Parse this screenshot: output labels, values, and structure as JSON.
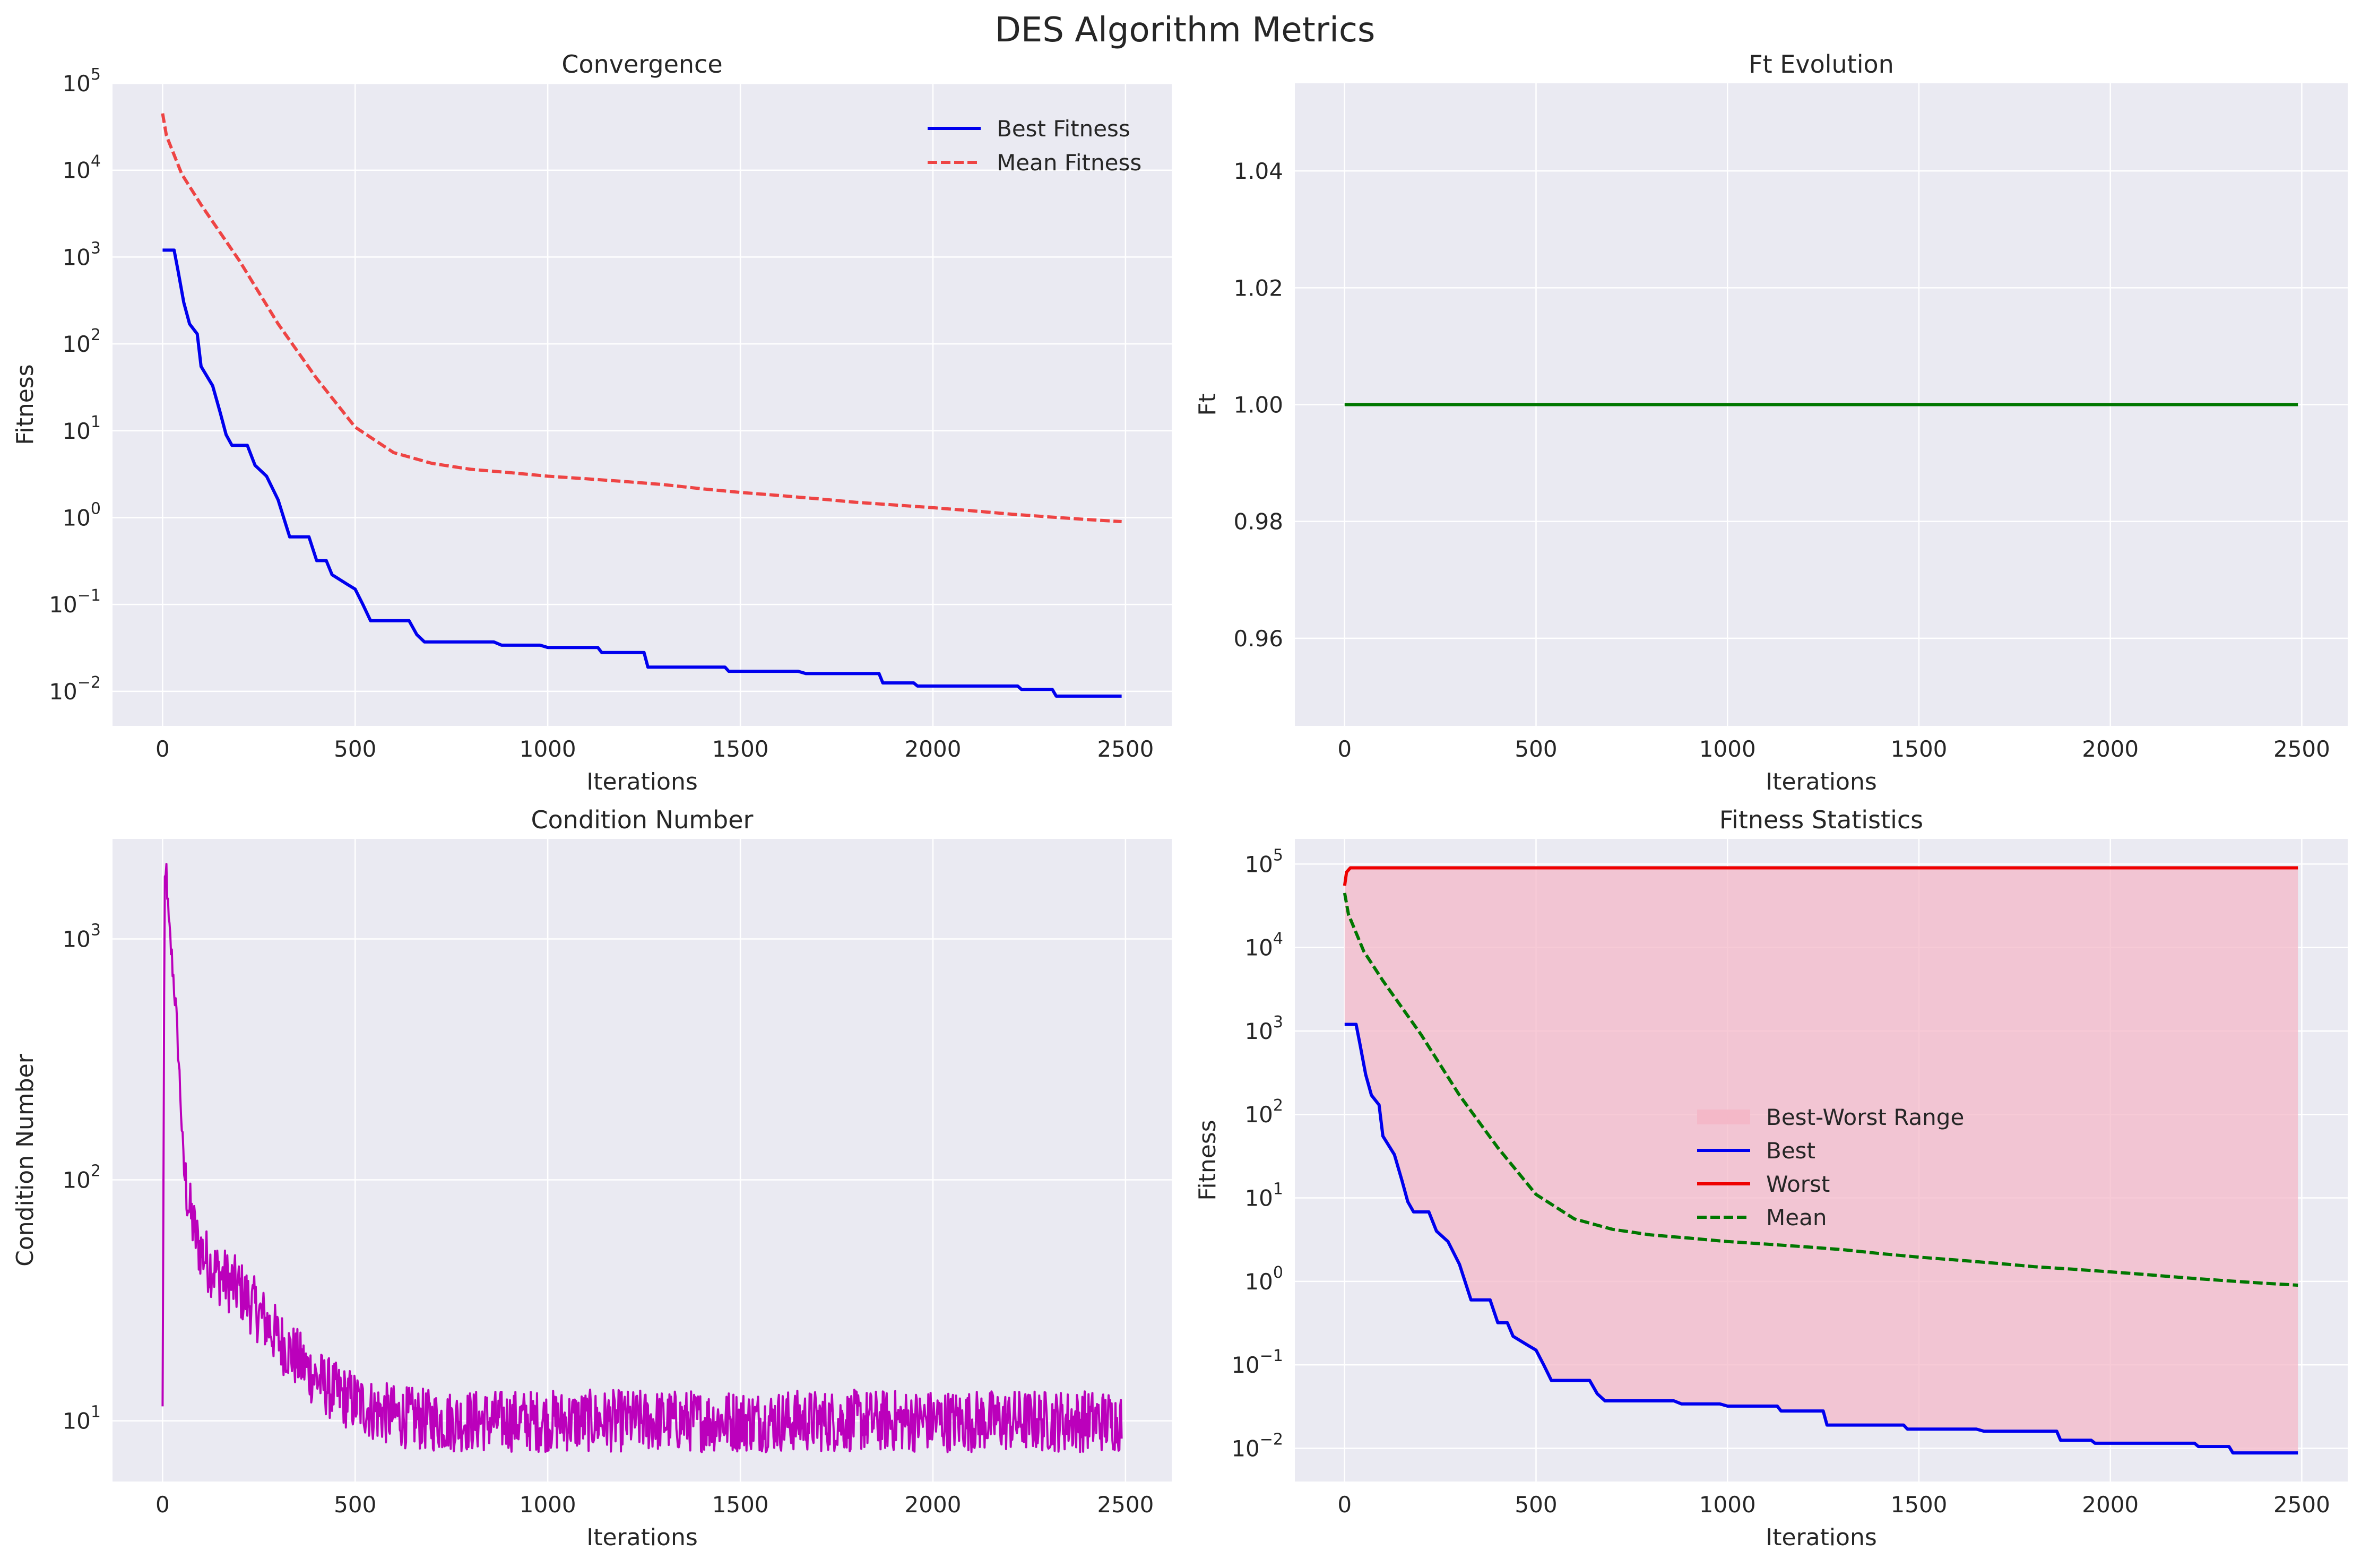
{
  "figure": {
    "title": "DES Algorithm Metrics"
  },
  "colors": {
    "panel_background": "#eaeaf2",
    "grid": "#ffffff",
    "blue": "#0000ee",
    "red": "#ee0000",
    "mean_red": "#ee4444",
    "green": "#007700",
    "magenta": "#bb00bb",
    "range_fill": "#f4b8c8"
  },
  "chart_data": [
    {
      "id": "convergence",
      "type": "line",
      "title": "Convergence",
      "xlabel": "Iterations",
      "ylabel": "Fitness",
      "yscale": "log",
      "xlim": [
        -130,
        2620
      ],
      "ylim": [
        0.004,
        100000
      ],
      "xticks": [
        0,
        500,
        1000,
        1500,
        2000,
        2500
      ],
      "yticks": [
        0.01,
        0.1,
        1,
        10,
        100,
        1000,
        10000,
        100000
      ],
      "ytick_exponents": [
        "−2",
        "−1",
        "0",
        "1",
        "2",
        "3",
        "4",
        "5"
      ],
      "grid": true,
      "legend": "top-right",
      "series": [
        {
          "name": "Best Fitness",
          "style": "solid",
          "color": "#0000ee",
          "points": [
            [
              0,
              1200
            ],
            [
              30,
              1200
            ],
            [
              40,
              700
            ],
            [
              55,
              300
            ],
            [
              70,
              170
            ],
            [
              90,
              130
            ],
            [
              100,
              55
            ],
            [
              130,
              33
            ],
            [
              150,
              16
            ],
            [
              165,
              9
            ],
            [
              180,
              6.8
            ],
            [
              220,
              6.8
            ],
            [
              240,
              4
            ],
            [
              270,
              3
            ],
            [
              300,
              1.6
            ],
            [
              330,
              0.6
            ],
            [
              380,
              0.6
            ],
            [
              400,
              0.32
            ],
            [
              425,
              0.32
            ],
            [
              440,
              0.22
            ],
            [
              480,
              0.17
            ],
            [
              500,
              0.15
            ],
            [
              520,
              0.1
            ],
            [
              540,
              0.065
            ],
            [
              640,
              0.065
            ],
            [
              660,
              0.045
            ],
            [
              680,
              0.037
            ],
            [
              860,
              0.037
            ],
            [
              880,
              0.034
            ],
            [
              980,
              0.034
            ],
            [
              1000,
              0.032
            ],
            [
              1130,
              0.032
            ],
            [
              1140,
              0.028
            ],
            [
              1250,
              0.028
            ],
            [
              1260,
              0.019
            ],
            [
              1460,
              0.019
            ],
            [
              1470,
              0.017
            ],
            [
              1650,
              0.017
            ],
            [
              1670,
              0.016
            ],
            [
              1860,
              0.016
            ],
            [
              1870,
              0.0125
            ],
            [
              1950,
              0.0125
            ],
            [
              1960,
              0.0115
            ],
            [
              2220,
              0.0115
            ],
            [
              2230,
              0.0105
            ],
            [
              2310,
              0.0105
            ],
            [
              2320,
              0.0088
            ],
            [
              2490,
              0.0088
            ]
          ]
        },
        {
          "name": "Mean Fitness",
          "style": "dashed",
          "color": "#ee4444",
          "points": [
            [
              0,
              45000
            ],
            [
              10,
              25000
            ],
            [
              50,
              9000
            ],
            [
              100,
              4000
            ],
            [
              200,
              900
            ],
            [
              300,
              170
            ],
            [
              400,
              40
            ],
            [
              500,
              11
            ],
            [
              600,
              5.6
            ],
            [
              700,
              4.2
            ],
            [
              800,
              3.6
            ],
            [
              900,
              3.3
            ],
            [
              1000,
              3
            ],
            [
              1100,
              2.8
            ],
            [
              1200,
              2.6
            ],
            [
              1300,
              2.4
            ],
            [
              1400,
              2.15
            ],
            [
              1500,
              1.95
            ],
            [
              1600,
              1.8
            ],
            [
              1700,
              1.65
            ],
            [
              1800,
              1.5
            ],
            [
              1900,
              1.4
            ],
            [
              2000,
              1.3
            ],
            [
              2100,
              1.2
            ],
            [
              2200,
              1.1
            ],
            [
              2300,
              1.02
            ],
            [
              2400,
              0.95
            ],
            [
              2490,
              0.9
            ]
          ]
        }
      ]
    },
    {
      "id": "ft-evolution",
      "type": "line",
      "title": "Ft Evolution",
      "xlabel": "Iterations",
      "ylabel": "Ft",
      "yscale": "linear",
      "xlim": [
        -130,
        2620
      ],
      "ylim": [
        0.945,
        1.055
      ],
      "xticks": [
        0,
        500,
        1000,
        1500,
        2000,
        2500
      ],
      "yticks": [
        0.96,
        0.98,
        1.0,
        1.02,
        1.04
      ],
      "ytick_labels": [
        "0.96",
        "0.98",
        "1.00",
        "1.02",
        "1.04"
      ],
      "grid": true,
      "series": [
        {
          "style": "solid",
          "color": "#007700",
          "points": [
            [
              0,
              1.0
            ],
            [
              2490,
              1.0
            ]
          ]
        }
      ]
    },
    {
      "id": "condition-number",
      "type": "line",
      "title": "Condition Number",
      "xlabel": "Iterations",
      "ylabel": "Condition Number",
      "yscale": "log",
      "xlim": [
        -130,
        2620
      ],
      "ylim": [
        5.6,
        2600
      ],
      "xticks": [
        0,
        500,
        1000,
        1500,
        2000,
        2500
      ],
      "yticks": [
        10,
        100,
        1000
      ],
      "ytick_exponents": [
        "1",
        "2",
        "3"
      ],
      "grid": true,
      "series": [
        {
          "style": "noisy",
          "color": "#bb00bb",
          "points": [
            [
              0,
              11
            ],
            [
              5,
              1500
            ],
            [
              10,
              1950
            ],
            [
              15,
              1200
            ],
            [
              25,
              800
            ],
            [
              35,
              500
            ],
            [
              45,
              250
            ],
            [
              55,
              110
            ],
            [
              70,
              75
            ],
            [
              90,
              55
            ],
            [
              120,
              45
            ],
            [
              150,
              40
            ],
            [
              200,
              35
            ],
            [
              250,
              28
            ],
            [
              300,
              22
            ],
            [
              350,
              18
            ],
            [
              400,
              15
            ],
            [
              450,
              13
            ],
            [
              500,
              12
            ],
            [
              550,
              11
            ],
            [
              600,
              10.5
            ],
            [
              700,
              10
            ],
            [
              1000,
              10
            ],
            [
              1500,
              10
            ],
            [
              2000,
              10
            ],
            [
              2490,
              10
            ]
          ]
        }
      ]
    },
    {
      "id": "fitness-statistics",
      "type": "line",
      "title": "Fitness Statistics",
      "xlabel": "Iterations",
      "ylabel": "Fitness",
      "yscale": "log",
      "xlim": [
        -130,
        2620
      ],
      "ylim": [
        0.004,
        200000
      ],
      "xticks": [
        0,
        500,
        1000,
        1500,
        2000,
        2500
      ],
      "yticks": [
        0.01,
        0.1,
        1,
        10,
        100,
        1000,
        10000,
        100000
      ],
      "ytick_exponents": [
        "−2",
        "−1",
        "0",
        "1",
        "2",
        "3",
        "4",
        "5"
      ],
      "grid": true,
      "legend": "center",
      "range_name": "Best-Worst Range",
      "series": [
        {
          "name": "Best",
          "style": "solid",
          "color": "#0000ee",
          "points": [
            [
              0,
              1200
            ],
            [
              30,
              1200
            ],
            [
              40,
              700
            ],
            [
              55,
              300
            ],
            [
              70,
              170
            ],
            [
              90,
              130
            ],
            [
              100,
              55
            ],
            [
              130,
              33
            ],
            [
              150,
              16
            ],
            [
              165,
              9
            ],
            [
              180,
              6.8
            ],
            [
              220,
              6.8
            ],
            [
              240,
              4
            ],
            [
              270,
              3
            ],
            [
              300,
              1.6
            ],
            [
              330,
              0.6
            ],
            [
              380,
              0.6
            ],
            [
              400,
              0.32
            ],
            [
              425,
              0.32
            ],
            [
              440,
              0.22
            ],
            [
              480,
              0.17
            ],
            [
              500,
              0.15
            ],
            [
              520,
              0.1
            ],
            [
              540,
              0.065
            ],
            [
              640,
              0.065
            ],
            [
              660,
              0.045
            ],
            [
              680,
              0.037
            ],
            [
              860,
              0.037
            ],
            [
              880,
              0.034
            ],
            [
              980,
              0.034
            ],
            [
              1000,
              0.032
            ],
            [
              1130,
              0.032
            ],
            [
              1140,
              0.028
            ],
            [
              1250,
              0.028
            ],
            [
              1260,
              0.019
            ],
            [
              1460,
              0.019
            ],
            [
              1470,
              0.017
            ],
            [
              1650,
              0.017
            ],
            [
              1670,
              0.016
            ],
            [
              1860,
              0.016
            ],
            [
              1870,
              0.0125
            ],
            [
              1950,
              0.0125
            ],
            [
              1960,
              0.0115
            ],
            [
              2220,
              0.0115
            ],
            [
              2230,
              0.0105
            ],
            [
              2310,
              0.0105
            ],
            [
              2320,
              0.0088
            ],
            [
              2490,
              0.0088
            ]
          ]
        },
        {
          "name": "Worst",
          "style": "solid",
          "color": "#ee0000",
          "points": [
            [
              0,
              55000
            ],
            [
              5,
              80000
            ],
            [
              15,
              90000
            ],
            [
              2490,
              90000
            ]
          ]
        },
        {
          "name": "Mean",
          "style": "dashed",
          "color": "#007700",
          "points": [
            [
              0,
              45000
            ],
            [
              10,
              25000
            ],
            [
              50,
              9000
            ],
            [
              100,
              4000
            ],
            [
              200,
              900
            ],
            [
              300,
              170
            ],
            [
              400,
              40
            ],
            [
              500,
              11
            ],
            [
              600,
              5.6
            ],
            [
              700,
              4.2
            ],
            [
              800,
              3.6
            ],
            [
              900,
              3.3
            ],
            [
              1000,
              3
            ],
            [
              1100,
              2.8
            ],
            [
              1200,
              2.6
            ],
            [
              1300,
              2.4
            ],
            [
              1400,
              2.15
            ],
            [
              1500,
              1.95
            ],
            [
              1600,
              1.8
            ],
            [
              1700,
              1.65
            ],
            [
              1800,
              1.5
            ],
            [
              1900,
              1.4
            ],
            [
              2000,
              1.3
            ],
            [
              2100,
              1.2
            ],
            [
              2200,
              1.1
            ],
            [
              2300,
              1.02
            ],
            [
              2400,
              0.95
            ],
            [
              2490,
              0.9
            ]
          ]
        }
      ]
    }
  ]
}
